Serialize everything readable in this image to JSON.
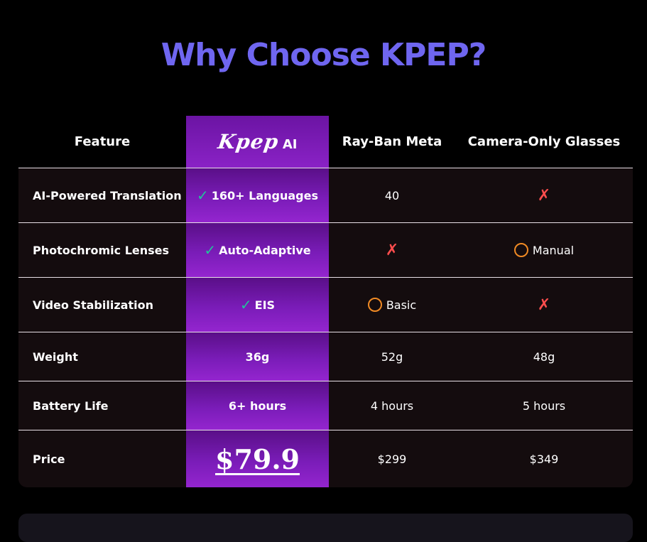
{
  "title": "Why Choose KPEP?",
  "columns": {
    "feature": "Feature",
    "kpep_logo": "Kpep",
    "kpep_ai": "AI",
    "rayban": "Ray-Ban Meta",
    "camera": "Camera-Only Glasses"
  },
  "rows": [
    {
      "feature": "AI-Powered Translation",
      "kpep": {
        "mark": "check",
        "text": "160+ Languages"
      },
      "rayban": {
        "mark": "none",
        "text": "40"
      },
      "camera": {
        "mark": "cross",
        "text": "✗"
      }
    },
    {
      "feature": "Photochromic Lenses",
      "kpep": {
        "mark": "check",
        "text": "Auto-Adaptive"
      },
      "rayban": {
        "mark": "cross",
        "text": "✗"
      },
      "camera": {
        "mark": "circle",
        "text": "Manual"
      }
    },
    {
      "feature": "Video Stabilization",
      "kpep": {
        "mark": "check",
        "text": "EIS"
      },
      "rayban": {
        "mark": "circle",
        "text": "Basic"
      },
      "camera": {
        "mark": "cross",
        "text": "✗"
      }
    },
    {
      "feature": "Weight",
      "kpep": {
        "mark": "none",
        "text": "36g"
      },
      "rayban": {
        "mark": "none",
        "text": "52g"
      },
      "camera": {
        "mark": "none",
        "text": "48g"
      }
    },
    {
      "feature": "Battery Life",
      "kpep": {
        "mark": "none",
        "text": "6+ hours"
      },
      "rayban": {
        "mark": "none",
        "text": "4 hours"
      },
      "camera": {
        "mark": "none",
        "text": "5 hours"
      }
    },
    {
      "feature": "Price",
      "kpep": {
        "mark": "none",
        "text": "$79.9"
      },
      "rayban": {
        "mark": "none",
        "text": "$299"
      },
      "camera": {
        "mark": "none",
        "text": "$349"
      }
    }
  ],
  "icons": {
    "check": "✓",
    "cross": "✗"
  },
  "colors": {
    "title": "#6f66f0",
    "kpep_column": "#7a1cb8",
    "check": "#22c39a",
    "cross": "#ff4d4d",
    "partial": "#f08a24",
    "row_bg": "#140c0e"
  }
}
